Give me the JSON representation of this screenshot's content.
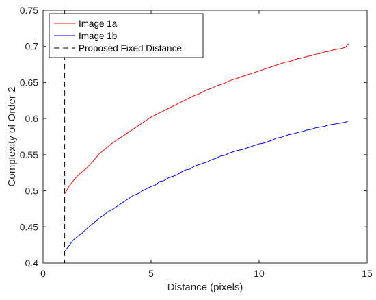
{
  "chart_data": {
    "type": "line",
    "title": "",
    "xlabel": "Distance (pixels)",
    "ylabel": "Complexity of Order 2",
    "xlim": [
      0,
      15
    ],
    "ylim": [
      0.4,
      0.75
    ],
    "xticks": [
      0,
      5,
      10,
      15
    ],
    "xtick_labels": [
      "0",
      "5",
      "10",
      "15"
    ],
    "yticks": [
      0.4,
      0.45,
      0.5,
      0.55,
      0.6,
      0.65,
      0.7,
      0.75
    ],
    "ytick_labels": [
      "0.4",
      "0.45",
      "0.5",
      "0.55",
      "0.6",
      "0.65",
      "0.7",
      "0.75"
    ],
    "grid": false,
    "legend_position": "top-left",
    "series": [
      {
        "name": "Image 1a",
        "color": "#ff0000",
        "style": "solid",
        "points": [
          [
            1.0,
            0.496
          ],
          [
            1.2,
            0.506
          ],
          [
            1.4,
            0.514
          ],
          [
            1.6,
            0.521
          ],
          [
            1.8,
            0.526
          ],
          [
            2.0,
            0.531
          ],
          [
            2.2,
            0.537
          ],
          [
            2.4,
            0.544
          ],
          [
            2.6,
            0.551
          ],
          [
            2.8,
            0.556
          ],
          [
            3.0,
            0.561
          ],
          [
            3.2,
            0.566
          ],
          [
            3.4,
            0.57
          ],
          [
            3.6,
            0.574
          ],
          [
            3.8,
            0.578
          ],
          [
            4.0,
            0.582
          ],
          [
            4.2,
            0.586
          ],
          [
            4.4,
            0.59
          ],
          [
            4.6,
            0.594
          ],
          [
            4.8,
            0.598
          ],
          [
            5.0,
            0.602
          ],
          [
            5.2,
            0.605
          ],
          [
            5.4,
            0.608
          ],
          [
            5.6,
            0.611
          ],
          [
            5.8,
            0.614
          ],
          [
            6.0,
            0.617
          ],
          [
            6.2,
            0.62
          ],
          [
            6.4,
            0.623
          ],
          [
            6.6,
            0.626
          ],
          [
            6.8,
            0.629
          ],
          [
            7.0,
            0.632
          ],
          [
            7.2,
            0.634
          ],
          [
            7.4,
            0.637
          ],
          [
            7.6,
            0.64
          ],
          [
            7.8,
            0.642
          ],
          [
            8.0,
            0.645
          ],
          [
            8.2,
            0.647
          ],
          [
            8.4,
            0.649
          ],
          [
            8.6,
            0.652
          ],
          [
            8.8,
            0.654
          ],
          [
            9.0,
            0.656
          ],
          [
            9.2,
            0.658
          ],
          [
            9.4,
            0.66
          ],
          [
            9.6,
            0.662
          ],
          [
            9.8,
            0.664
          ],
          [
            10.0,
            0.666
          ],
          [
            10.2,
            0.668
          ],
          [
            10.4,
            0.67
          ],
          [
            10.6,
            0.672
          ],
          [
            10.8,
            0.674
          ],
          [
            11.0,
            0.676
          ],
          [
            11.2,
            0.678
          ],
          [
            11.4,
            0.679
          ],
          [
            11.6,
            0.681
          ],
          [
            11.8,
            0.683
          ],
          [
            12.0,
            0.684
          ],
          [
            12.2,
            0.686
          ],
          [
            12.4,
            0.687
          ],
          [
            12.6,
            0.689
          ],
          [
            12.8,
            0.69
          ],
          [
            13.0,
            0.692
          ],
          [
            13.2,
            0.693
          ],
          [
            13.4,
            0.695
          ],
          [
            13.6,
            0.696
          ],
          [
            13.8,
            0.697
          ],
          [
            14.0,
            0.699
          ],
          [
            14.14,
            0.704
          ]
        ]
      },
      {
        "name": "Image 1b",
        "color": "#0000ff",
        "style": "solid",
        "points": [
          [
            1.0,
            0.416
          ],
          [
            1.2,
            0.424
          ],
          [
            1.4,
            0.432
          ],
          [
            1.6,
            0.437
          ],
          [
            1.8,
            0.441
          ],
          [
            2.0,
            0.447
          ],
          [
            2.2,
            0.452
          ],
          [
            2.4,
            0.457
          ],
          [
            2.6,
            0.462
          ],
          [
            2.8,
            0.466
          ],
          [
            3.0,
            0.471
          ],
          [
            3.2,
            0.474
          ],
          [
            3.4,
            0.478
          ],
          [
            3.6,
            0.482
          ],
          [
            3.8,
            0.486
          ],
          [
            4.0,
            0.49
          ],
          [
            4.2,
            0.494
          ],
          [
            4.4,
            0.496
          ],
          [
            4.6,
            0.5
          ],
          [
            4.8,
            0.503
          ],
          [
            5.0,
            0.506
          ],
          [
            5.2,
            0.508
          ],
          [
            5.4,
            0.513
          ],
          [
            5.6,
            0.514
          ],
          [
            5.8,
            0.518
          ],
          [
            6.0,
            0.52
          ],
          [
            6.2,
            0.522
          ],
          [
            6.4,
            0.526
          ],
          [
            6.6,
            0.529
          ],
          [
            6.8,
            0.53
          ],
          [
            7.0,
            0.534
          ],
          [
            7.2,
            0.536
          ],
          [
            7.4,
            0.538
          ],
          [
            7.6,
            0.54
          ],
          [
            7.8,
            0.543
          ],
          [
            8.0,
            0.545
          ],
          [
            8.2,
            0.548
          ],
          [
            8.4,
            0.549
          ],
          [
            8.6,
            0.552
          ],
          [
            8.8,
            0.554
          ],
          [
            9.0,
            0.556
          ],
          [
            9.2,
            0.557
          ],
          [
            9.4,
            0.559
          ],
          [
            9.6,
            0.561
          ],
          [
            9.8,
            0.563
          ],
          [
            10.0,
            0.565
          ],
          [
            10.2,
            0.566
          ],
          [
            10.4,
            0.568
          ],
          [
            10.6,
            0.57
          ],
          [
            10.8,
            0.573
          ],
          [
            11.0,
            0.574
          ],
          [
            11.2,
            0.576
          ],
          [
            11.4,
            0.578
          ],
          [
            11.6,
            0.579
          ],
          [
            11.8,
            0.581
          ],
          [
            12.0,
            0.582
          ],
          [
            12.2,
            0.584
          ],
          [
            12.4,
            0.585
          ],
          [
            12.6,
            0.587
          ],
          [
            12.8,
            0.588
          ],
          [
            13.0,
            0.589
          ],
          [
            13.2,
            0.591
          ],
          [
            13.4,
            0.592
          ],
          [
            13.6,
            0.593
          ],
          [
            13.8,
            0.594
          ],
          [
            14.0,
            0.595
          ],
          [
            14.14,
            0.597
          ]
        ]
      }
    ],
    "reference_lines": [
      {
        "name": "Proposed Fixed Distance",
        "orientation": "vertical",
        "x": 1.0,
        "color": "#000000",
        "style": "dashed"
      }
    ]
  }
}
